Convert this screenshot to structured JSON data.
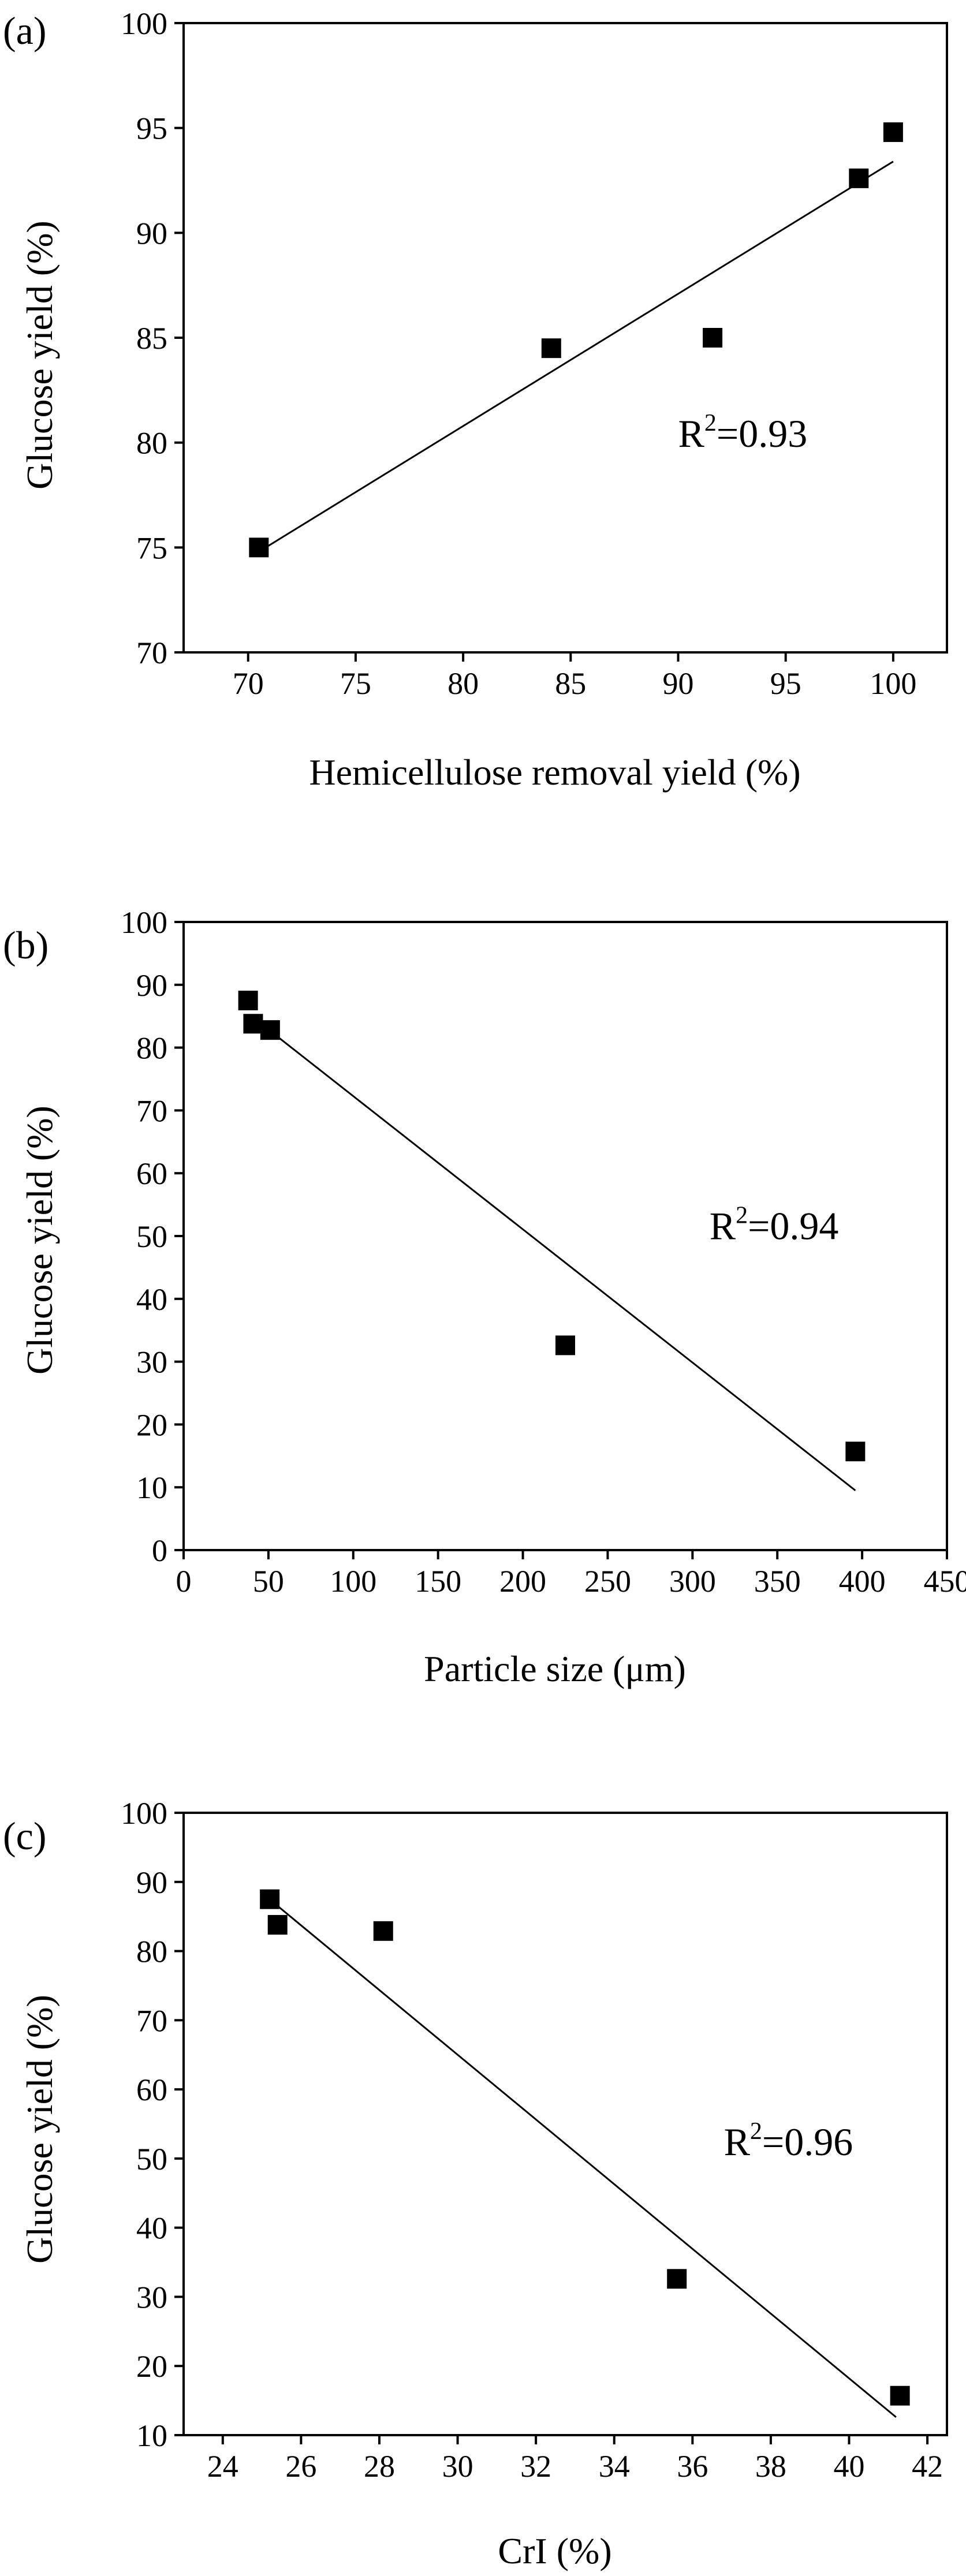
{
  "chart_data": [
    {
      "panel": "(a)",
      "type": "scatter",
      "xlabel": "Hemicellulose removal yield (%)",
      "ylabel": "Glucose yield (%)",
      "xlim": [
        67,
        102.5
      ],
      "ylim": [
        70,
        100
      ],
      "xticks": [
        70,
        75,
        80,
        85,
        90,
        95,
        100
      ],
      "yticks": [
        70,
        75,
        80,
        85,
        90,
        95,
        100
      ],
      "points": [
        {
          "x": 70.5,
          "y": 75.0
        },
        {
          "x": 84.1,
          "y": 84.5
        },
        {
          "x": 91.6,
          "y": 85.0
        },
        {
          "x": 98.4,
          "y": 92.6
        },
        {
          "x": 100.0,
          "y": 94.8
        }
      ],
      "fit": {
        "x": [
          70.5,
          100.0
        ],
        "y": [
          74.8,
          93.4
        ]
      },
      "annotation": {
        "base": "R",
        "sup": "2",
        "rest": "=0.93",
        "x": 90,
        "y": 79.8
      }
    },
    {
      "panel": "(b)",
      "type": "scatter",
      "xlabel": "Particle size (μm)",
      "ylabel": "Glucose yield (%)",
      "xlim": [
        0,
        450
      ],
      "ylim": [
        0,
        100
      ],
      "xticks": [
        0,
        50,
        100,
        150,
        200,
        250,
        300,
        350,
        400,
        450
      ],
      "yticks": [
        0,
        10,
        20,
        30,
        40,
        50,
        60,
        70,
        80,
        90,
        100
      ],
      "points": [
        {
          "x": 38,
          "y": 87.5
        },
        {
          "x": 41,
          "y": 83.8
        },
        {
          "x": 51,
          "y": 82.8
        },
        {
          "x": 225,
          "y": 32.6
        },
        {
          "x": 396,
          "y": 15.7
        }
      ],
      "fit": {
        "x": [
          40,
          396
        ],
        "y": [
          85.0,
          9.5
        ]
      },
      "annotation": {
        "base": "R",
        "sup": "2",
        "rest": "=0.94",
        "x": 310,
        "y": 49.5
      }
    },
    {
      "panel": "(c)",
      "type": "scatter",
      "xlabel": "CrI (%)",
      "ylabel": "Glucose yield (%)",
      "xlim": [
        23,
        42.5
      ],
      "ylim": [
        10,
        100
      ],
      "xticks": [
        24,
        26,
        28,
        30,
        32,
        34,
        36,
        38,
        40,
        42
      ],
      "yticks": [
        10,
        20,
        30,
        40,
        50,
        60,
        70,
        80,
        90,
        100
      ],
      "points": [
        {
          "x": 25.2,
          "y": 87.5
        },
        {
          "x": 25.4,
          "y": 83.8
        },
        {
          "x": 28.1,
          "y": 82.9
        },
        {
          "x": 35.6,
          "y": 32.6
        },
        {
          "x": 41.3,
          "y": 15.7
        }
      ],
      "fit": {
        "x": [
          25.3,
          41.2
        ],
        "y": [
          87.0,
          12.6
        ]
      },
      "annotation": {
        "base": "R",
        "sup": "2",
        "rest": "=0.96",
        "x": 36.8,
        "y": 50.5
      }
    }
  ]
}
